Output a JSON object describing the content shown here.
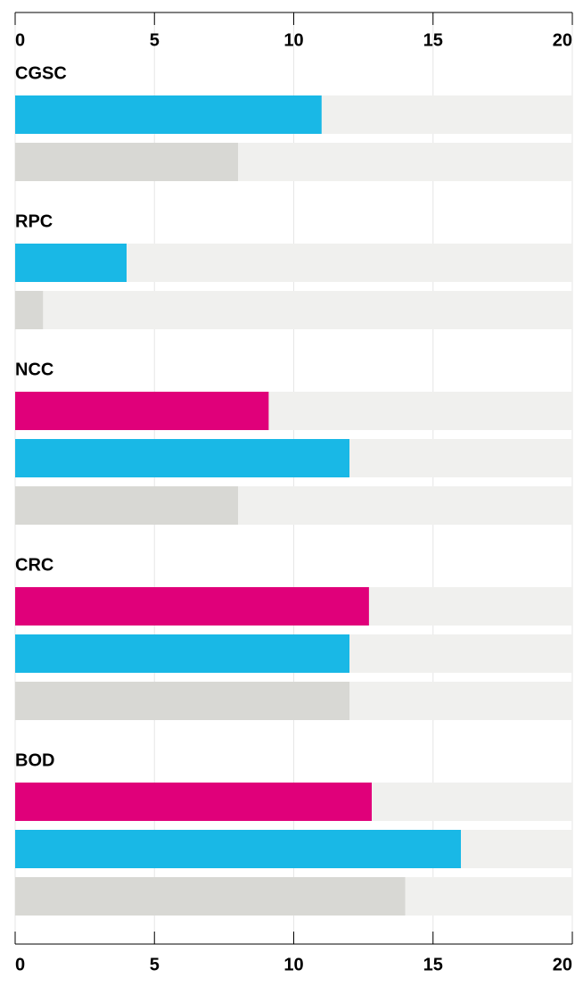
{
  "chart_data": {
    "type": "bar",
    "orientation": "horizontal",
    "categories": [
      "CGSC",
      "RPC",
      "NCC",
      "CRC",
      "BOD"
    ],
    "series": [
      {
        "color": "#e0007a",
        "values": [
          null,
          null,
          9.1,
          12.7,
          12.8
        ]
      },
      {
        "color": "#19b8e6",
        "values": [
          11,
          4,
          12,
          12,
          16
        ]
      },
      {
        "color": "#d8d8d4",
        "values": [
          8,
          1,
          8,
          12,
          14
        ]
      }
    ],
    "track_color": "#f0f0ee",
    "xlim": [
      0,
      20
    ],
    "xticks": [
      0,
      5,
      10,
      15,
      20
    ],
    "grid": true
  }
}
